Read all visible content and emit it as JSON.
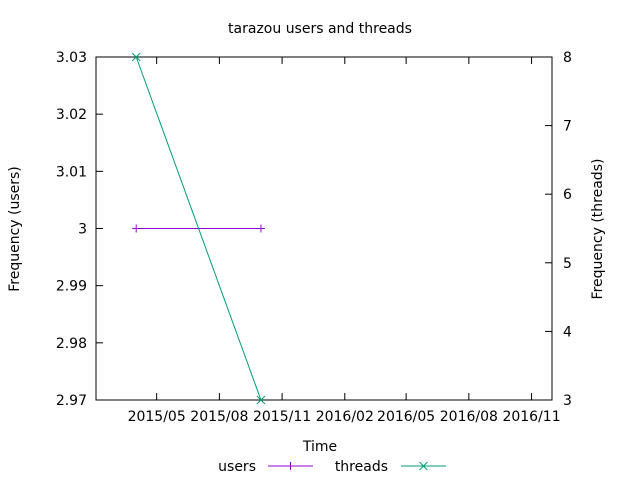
{
  "chart_data": {
    "type": "line",
    "title": "tarazou users and threads",
    "xlabel": "Time",
    "ylabel_left": "Frequency (users)",
    "ylabel_right": "Frequency (threads)",
    "x_range": [
      "2015-02-01",
      "2016-12-01"
    ],
    "x_ticks": [
      "2015/05",
      "2015/08",
      "2015/11",
      "2016/02",
      "2016/05",
      "2016/08",
      "2016/11"
    ],
    "x_tick_dates": [
      "2015-05-01",
      "2015-08-01",
      "2015-11-01",
      "2016-02-01",
      "2016-05-01",
      "2016-08-01",
      "2016-11-01"
    ],
    "y_left_range": [
      2.97,
      3.03
    ],
    "y_left_ticks": [
      "2.97",
      "2.98",
      "2.99",
      "3",
      "3.01",
      "3.02",
      "3.03"
    ],
    "y_right_range": [
      3,
      8
    ],
    "y_right_ticks": [
      "3",
      "4",
      "5",
      "6",
      "7",
      "8"
    ],
    "grid": false,
    "legend_position": "bottom",
    "series": [
      {
        "name": "users",
        "axis": "left",
        "color": "#9400d3",
        "marker": "plus",
        "points": [
          {
            "x": "2015-04-01",
            "y": 3
          },
          {
            "x": "2015-10-01",
            "y": 3
          }
        ]
      },
      {
        "name": "threads",
        "axis": "right",
        "color": "#009e73",
        "marker": "cross",
        "points": [
          {
            "x": "2015-04-01",
            "y": 8
          },
          {
            "x": "2015-10-01",
            "y": 3
          }
        ]
      }
    ]
  }
}
